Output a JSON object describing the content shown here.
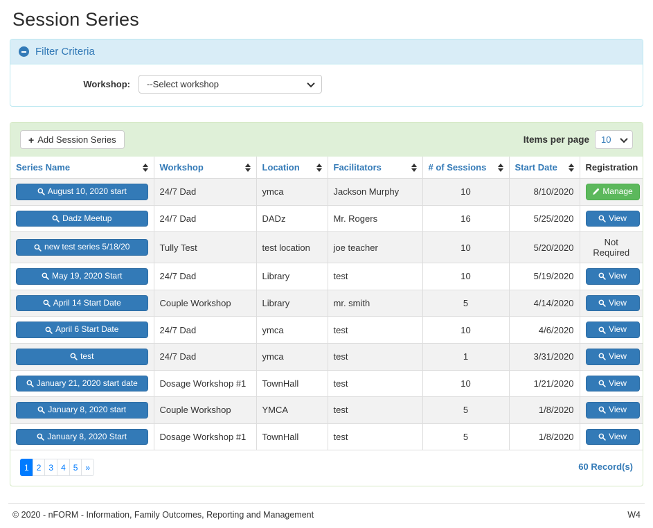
{
  "page": {
    "title": "Session Series"
  },
  "filter": {
    "title": "Filter Criteria",
    "collapse_icon": "minus-circle-icon",
    "workshop_label": "Workshop:",
    "workshop_selected": "--Select workshop"
  },
  "toolbar": {
    "add_button_label": "Add Session Series",
    "add_button_icon": "plus-icon",
    "items_per_page_label": "Items per page",
    "items_per_page_value": "10"
  },
  "table": {
    "columns": [
      {
        "label": "Series Name",
        "sortable": true
      },
      {
        "label": "Workshop",
        "sortable": true
      },
      {
        "label": "Location",
        "sortable": true
      },
      {
        "label": "Facilitators",
        "sortable": true
      },
      {
        "label": "# of Sessions",
        "sortable": true
      },
      {
        "label": "Start Date",
        "sortable": true
      },
      {
        "label": "Registration",
        "sortable": false
      }
    ],
    "rows": [
      {
        "series_name": "August 10, 2020 start",
        "workshop": "24/7 Dad",
        "location": "ymca",
        "facilitators": "Jackson Murphy",
        "sessions": "10",
        "start_date": "8/10/2020",
        "registration": {
          "type": "manage",
          "label": "Manage",
          "icon": "pencil-icon"
        }
      },
      {
        "series_name": "Dadz Meetup",
        "workshop": "24/7 Dad",
        "location": "DADz",
        "facilitators": "Mr. Rogers",
        "sessions": "16",
        "start_date": "5/25/2020",
        "registration": {
          "type": "view",
          "label": "View",
          "icon": "search-icon"
        }
      },
      {
        "series_name": "new test series 5/18/20",
        "workshop": "Tully Test",
        "location": "test location",
        "facilitators": "joe teacher",
        "sessions": "10",
        "start_date": "5/20/2020",
        "registration": {
          "type": "text",
          "label": "Not Required"
        }
      },
      {
        "series_name": "May 19, 2020 Start",
        "workshop": "24/7 Dad",
        "location": "Library",
        "facilitators": "test",
        "sessions": "10",
        "start_date": "5/19/2020",
        "registration": {
          "type": "view",
          "label": "View",
          "icon": "search-icon"
        }
      },
      {
        "series_name": "April 14 Start Date",
        "workshop": "Couple Workshop",
        "location": "Library",
        "facilitators": "mr. smith",
        "sessions": "5",
        "start_date": "4/14/2020",
        "registration": {
          "type": "view",
          "label": "View",
          "icon": "search-icon"
        }
      },
      {
        "series_name": "April 6 Start Date",
        "workshop": "24/7 Dad",
        "location": "ymca",
        "facilitators": "test",
        "sessions": "10",
        "start_date": "4/6/2020",
        "registration": {
          "type": "view",
          "label": "View",
          "icon": "search-icon"
        }
      },
      {
        "series_name": "test",
        "workshop": "24/7 Dad",
        "location": "ymca",
        "facilitators": "test",
        "sessions": "1",
        "start_date": "3/31/2020",
        "registration": {
          "type": "view",
          "label": "View",
          "icon": "search-icon"
        }
      },
      {
        "series_name": "January 21, 2020 start date",
        "workshop": "Dosage Workshop #1",
        "location": "TownHall",
        "facilitators": "test",
        "sessions": "10",
        "start_date": "1/21/2020",
        "registration": {
          "type": "view",
          "label": "View",
          "icon": "search-icon"
        }
      },
      {
        "series_name": "January 8, 2020 start",
        "workshop": "Couple Workshop",
        "location": "YMCA",
        "facilitators": "test",
        "sessions": "5",
        "start_date": "1/8/2020",
        "registration": {
          "type": "view",
          "label": "View",
          "icon": "search-icon"
        }
      },
      {
        "series_name": "January 8, 2020 Start",
        "workshop": "Dosage Workshop #1",
        "location": "TownHall",
        "facilitators": "test",
        "sessions": "5",
        "start_date": "1/8/2020",
        "registration": {
          "type": "view",
          "label": "View",
          "icon": "search-icon"
        }
      }
    ],
    "series_button_icon": "search-icon"
  },
  "pagination": {
    "pages": [
      "1",
      "2",
      "3",
      "4",
      "5",
      "»"
    ],
    "active_page": "1",
    "records_label": "60 Record(s)"
  },
  "footer": {
    "copyright": "© 2020 - nFORM - Information, Family Outcomes, Reporting and Management",
    "version": "W4"
  },
  "colors": {
    "accent_blue": "#337ab7",
    "accent_blue_border": "#2e6da4",
    "success_green": "#5cb85c",
    "success_green_border": "#4cae4c",
    "filter_header_bg": "#d9edf7",
    "filter_border": "#bce8f1",
    "toolbar_bg": "#dff0d8",
    "toolbar_border": "#d6e9c6",
    "pagination_active": "#007bff",
    "row_stripe": "#f2f2f2",
    "cell_border": "#dddddd"
  }
}
